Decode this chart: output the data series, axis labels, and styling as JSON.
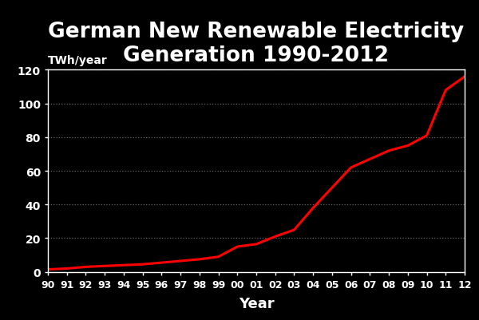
{
  "title": "German New Renewable Electricity\nGeneration 1990-2012",
  "xlabel": "Year",
  "ylabel_annotation": "TWh/year",
  "background_color": "#000000",
  "line_color": "#ff0000",
  "line_width": 2.2,
  "title_fontsize": 19,
  "title_fontweight": "bold",
  "title_color": "#ffffff",
  "label_color": "#ffffff",
  "tick_color": "#ffffff",
  "grid_color": "#666666",
  "years": [
    1990,
    1991,
    1992,
    1993,
    1994,
    1995,
    1996,
    1997,
    1998,
    1999,
    2000,
    2001,
    2002,
    2003,
    2004,
    2005,
    2006,
    2007,
    2008,
    2009,
    2010,
    2011,
    2012
  ],
  "values": [
    1.5,
    2.0,
    3.0,
    3.5,
    4.0,
    4.5,
    5.5,
    6.5,
    7.5,
    9.0,
    15.0,
    16.5,
    21.0,
    25.0,
    38.0,
    50.0,
    62.0,
    67.0,
    72.0,
    75.0,
    81.0,
    108.0,
    116.0
  ],
  "xlim": [
    1990,
    2012
  ],
  "ylim": [
    0,
    120
  ],
  "yticks": [
    0,
    20,
    40,
    60,
    80,
    100,
    120
  ],
  "xtick_labels": [
    "90",
    "91",
    "92",
    "93",
    "94",
    "95",
    "96",
    "97",
    "98",
    "99",
    "00",
    "01",
    "02",
    "03",
    "04",
    "05",
    "06",
    "07",
    "08",
    "09",
    "10",
    "11",
    "12"
  ]
}
